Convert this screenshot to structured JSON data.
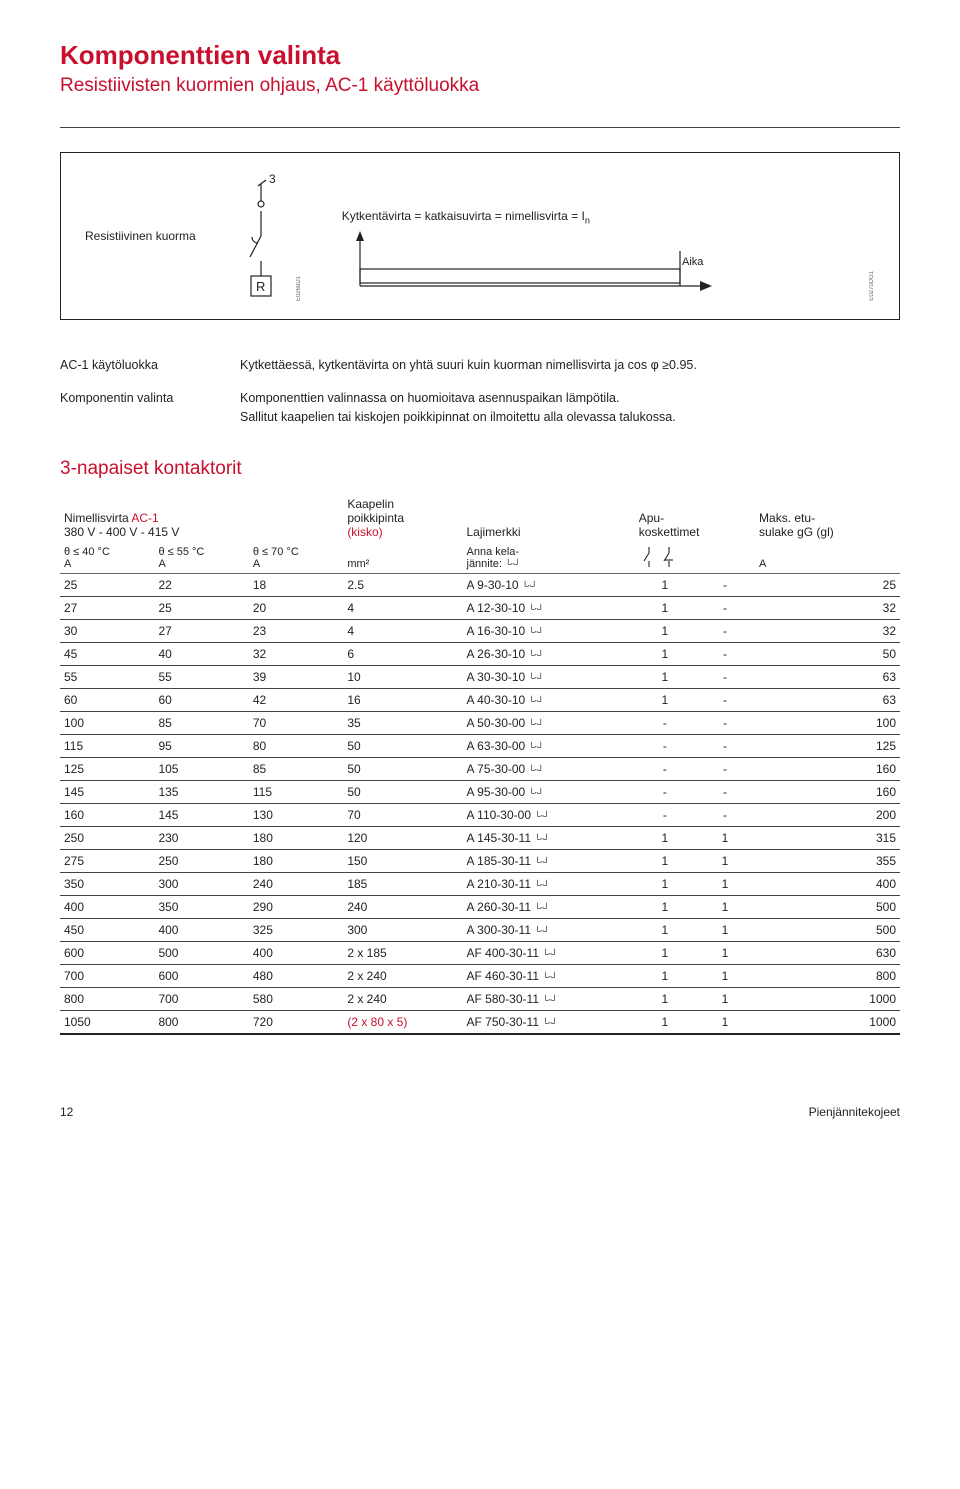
{
  "header": {
    "title": "Komponenttien valinta",
    "subtitle": "Resistiivisten kuormien ohjaus, AC-1 käyttöluokka"
  },
  "diagram": {
    "left_label": "Resistiivinen kuorma",
    "r_symbol": "R",
    "three_label": "3",
    "code_left": "E0269D1",
    "equation": "Kytkentävirta = katkaisuvirta = nimellisvirta = I",
    "equation_sub": "n",
    "aika": "Aika",
    "code_right": "E0270DG1",
    "stroke_color": "#222222",
    "line_width": 1.2
  },
  "info": {
    "row1_label": "AC-1 käytöluokka",
    "row1_text": "Kytkettäessä, kytkentävirta on yhtä suuri kuin kuorman nimellisvirta ja cos φ ≥0.95.",
    "row2_label": "Komponentin valinta",
    "row2_text_a": "Komponenttien valinnassa on huomioitava asennuspaikan lämpötila.",
    "row2_text_b": "Sallitut kaapelien tai kiskojen poikkipinnat on ilmoitettu alla olevassa talukossa."
  },
  "table": {
    "section_title": "3-napaiset kontaktorit",
    "header": {
      "h1_a": "Nimellisvirta",
      "h1_a_red": "AC-1",
      "h1_b": "380 V - 400 V - 415 V",
      "h2_a": "θ ≤ 40 °C",
      "h2_b": "θ ≤ 55 °C",
      "h2_c": "θ ≤ 70 °C",
      "h3_unit": "A",
      "kaapelin": "Kaapelin",
      "poikkipinta": "poikkipinta",
      "kisko": "(kisko)",
      "mm2": "mm²",
      "lajimerkki": "Lajimerkki",
      "anna": "Anna kela-",
      "jannite": "jännite:",
      "apu": "Apu-",
      "koskettimet": "koskettimet",
      "maks": "Maks. etu-",
      "sulake": "sulake gG (gl)",
      "unit_a": "A"
    },
    "rows": [
      {
        "c1": "25",
        "c2": "22",
        "c3": "18",
        "mm": "2.5",
        "laji": "A 9-30-10",
        "laji_red": false,
        "a1": "1",
        "a2": "-",
        "fuse": "25"
      },
      {
        "c1": "27",
        "c2": "25",
        "c3": "20",
        "mm": "4",
        "laji": "A 12-30-10",
        "laji_red": false,
        "a1": "1",
        "a2": "-",
        "fuse": "32"
      },
      {
        "c1": "30",
        "c2": "27",
        "c3": "23",
        "mm": "4",
        "laji": "A 16-30-10",
        "laji_red": false,
        "a1": "1",
        "a2": "-",
        "fuse": "32"
      },
      {
        "c1": "45",
        "c2": "40",
        "c3": "32",
        "mm": "6",
        "laji": "A 26-30-10",
        "laji_red": false,
        "a1": "1",
        "a2": "-",
        "fuse": "50"
      },
      {
        "c1": "55",
        "c2": "55",
        "c3": "39",
        "mm": "10",
        "laji": "A 30-30-10",
        "laji_red": false,
        "a1": "1",
        "a2": "-",
        "fuse": "63"
      },
      {
        "c1": "60",
        "c2": "60",
        "c3": "42",
        "mm": "16",
        "laji": "A 40-30-10",
        "laji_red": false,
        "a1": "1",
        "a2": "-",
        "fuse": "63"
      },
      {
        "c1": "100",
        "c2": "85",
        "c3": "70",
        "mm": "35",
        "laji": "A 50-30-00",
        "laji_red": false,
        "a1": "-",
        "a2": "-",
        "fuse": "100"
      },
      {
        "c1": "115",
        "c2": "95",
        "c3": "80",
        "mm": "50",
        "laji": "A 63-30-00",
        "laji_red": false,
        "a1": "-",
        "a2": "-",
        "fuse": "125"
      },
      {
        "c1": "125",
        "c2": "105",
        "c3": "85",
        "mm": "50",
        "laji": "A 75-30-00",
        "laji_red": false,
        "a1": "-",
        "a2": "-",
        "fuse": "160"
      },
      {
        "c1": "145",
        "c2": "135",
        "c3": "115",
        "mm": "50",
        "laji": "A 95-30-00",
        "laji_red": false,
        "a1": "-",
        "a2": "-",
        "fuse": "160"
      },
      {
        "c1": "160",
        "c2": "145",
        "c3": "130",
        "mm": "70",
        "laji": "A 110-30-00",
        "laji_red": false,
        "a1": "-",
        "a2": "-",
        "fuse": "200"
      },
      {
        "c1": "250",
        "c2": "230",
        "c3": "180",
        "mm": "120",
        "laji": "A 145-30-11",
        "laji_red": false,
        "a1": "1",
        "a2": "1",
        "fuse": "315"
      },
      {
        "c1": "275",
        "c2": "250",
        "c3": "180",
        "mm": "150",
        "laji": "A 185-30-11",
        "laji_red": false,
        "a1": "1",
        "a2": "1",
        "fuse": "355"
      },
      {
        "c1": "350",
        "c2": "300",
        "c3": "240",
        "mm": "185",
        "laji": "A 210-30-11",
        "laji_red": false,
        "a1": "1",
        "a2": "1",
        "fuse": "400"
      },
      {
        "c1": "400",
        "c2": "350",
        "c3": "290",
        "mm": "240",
        "laji": "A 260-30-11",
        "laji_red": false,
        "a1": "1",
        "a2": "1",
        "fuse": "500"
      },
      {
        "c1": "450",
        "c2": "400",
        "c3": "325",
        "mm": "300",
        "laji": "A 300-30-11",
        "laji_red": false,
        "a1": "1",
        "a2": "1",
        "fuse": "500"
      },
      {
        "c1": "600",
        "c2": "500",
        "c3": "400",
        "mm": "2 x 185",
        "laji": "AF 400-30-11",
        "laji_red": false,
        "a1": "1",
        "a2": "1",
        "fuse": "630"
      },
      {
        "c1": "700",
        "c2": "600",
        "c3": "480",
        "mm": "2 x 240",
        "laji": "AF 460-30-11",
        "laji_red": false,
        "a1": "1",
        "a2": "1",
        "fuse": "800"
      },
      {
        "c1": "800",
        "c2": "700",
        "c3": "580",
        "mm": "2 x 240",
        "laji": "AF 580-30-11",
        "laji_red": false,
        "a1": "1",
        "a2": "1",
        "fuse": "1000"
      },
      {
        "c1": "1050",
        "c2": "800",
        "c3": "720",
        "mm": "(2 x 80 x 5)",
        "mm_red": true,
        "laji": "AF 750-30-11",
        "laji_red": false,
        "a1": "1",
        "a2": "1",
        "fuse": "1000"
      }
    ],
    "box_glyph": "└‧‧┘"
  },
  "footer": {
    "page": "12",
    "right": "Pienjännitekojeet"
  },
  "colors": {
    "brand_red": "#c8102e",
    "text": "#222222",
    "rule": "#444444"
  }
}
